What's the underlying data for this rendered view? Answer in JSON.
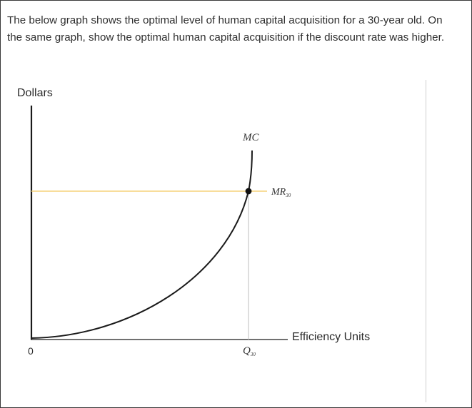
{
  "question": {
    "line1": "The below graph shows the optimal level of human capital acquisition for a 30-year old. On",
    "line2": "the same graph, show the optimal human capital acquisition if the discount rate was higher."
  },
  "chart_data": {
    "type": "line",
    "ylabel": "Dollars",
    "xlabel": "Efficiency Units",
    "origin_label": "0",
    "curves": [
      {
        "name": "MC",
        "color": "#1a1a1a"
      },
      {
        "name": "MR",
        "subscript": "30",
        "color": "#f5d27a"
      }
    ],
    "equilibrium": {
      "label": "Q",
      "subscript": "30"
    },
    "grid": false
  }
}
